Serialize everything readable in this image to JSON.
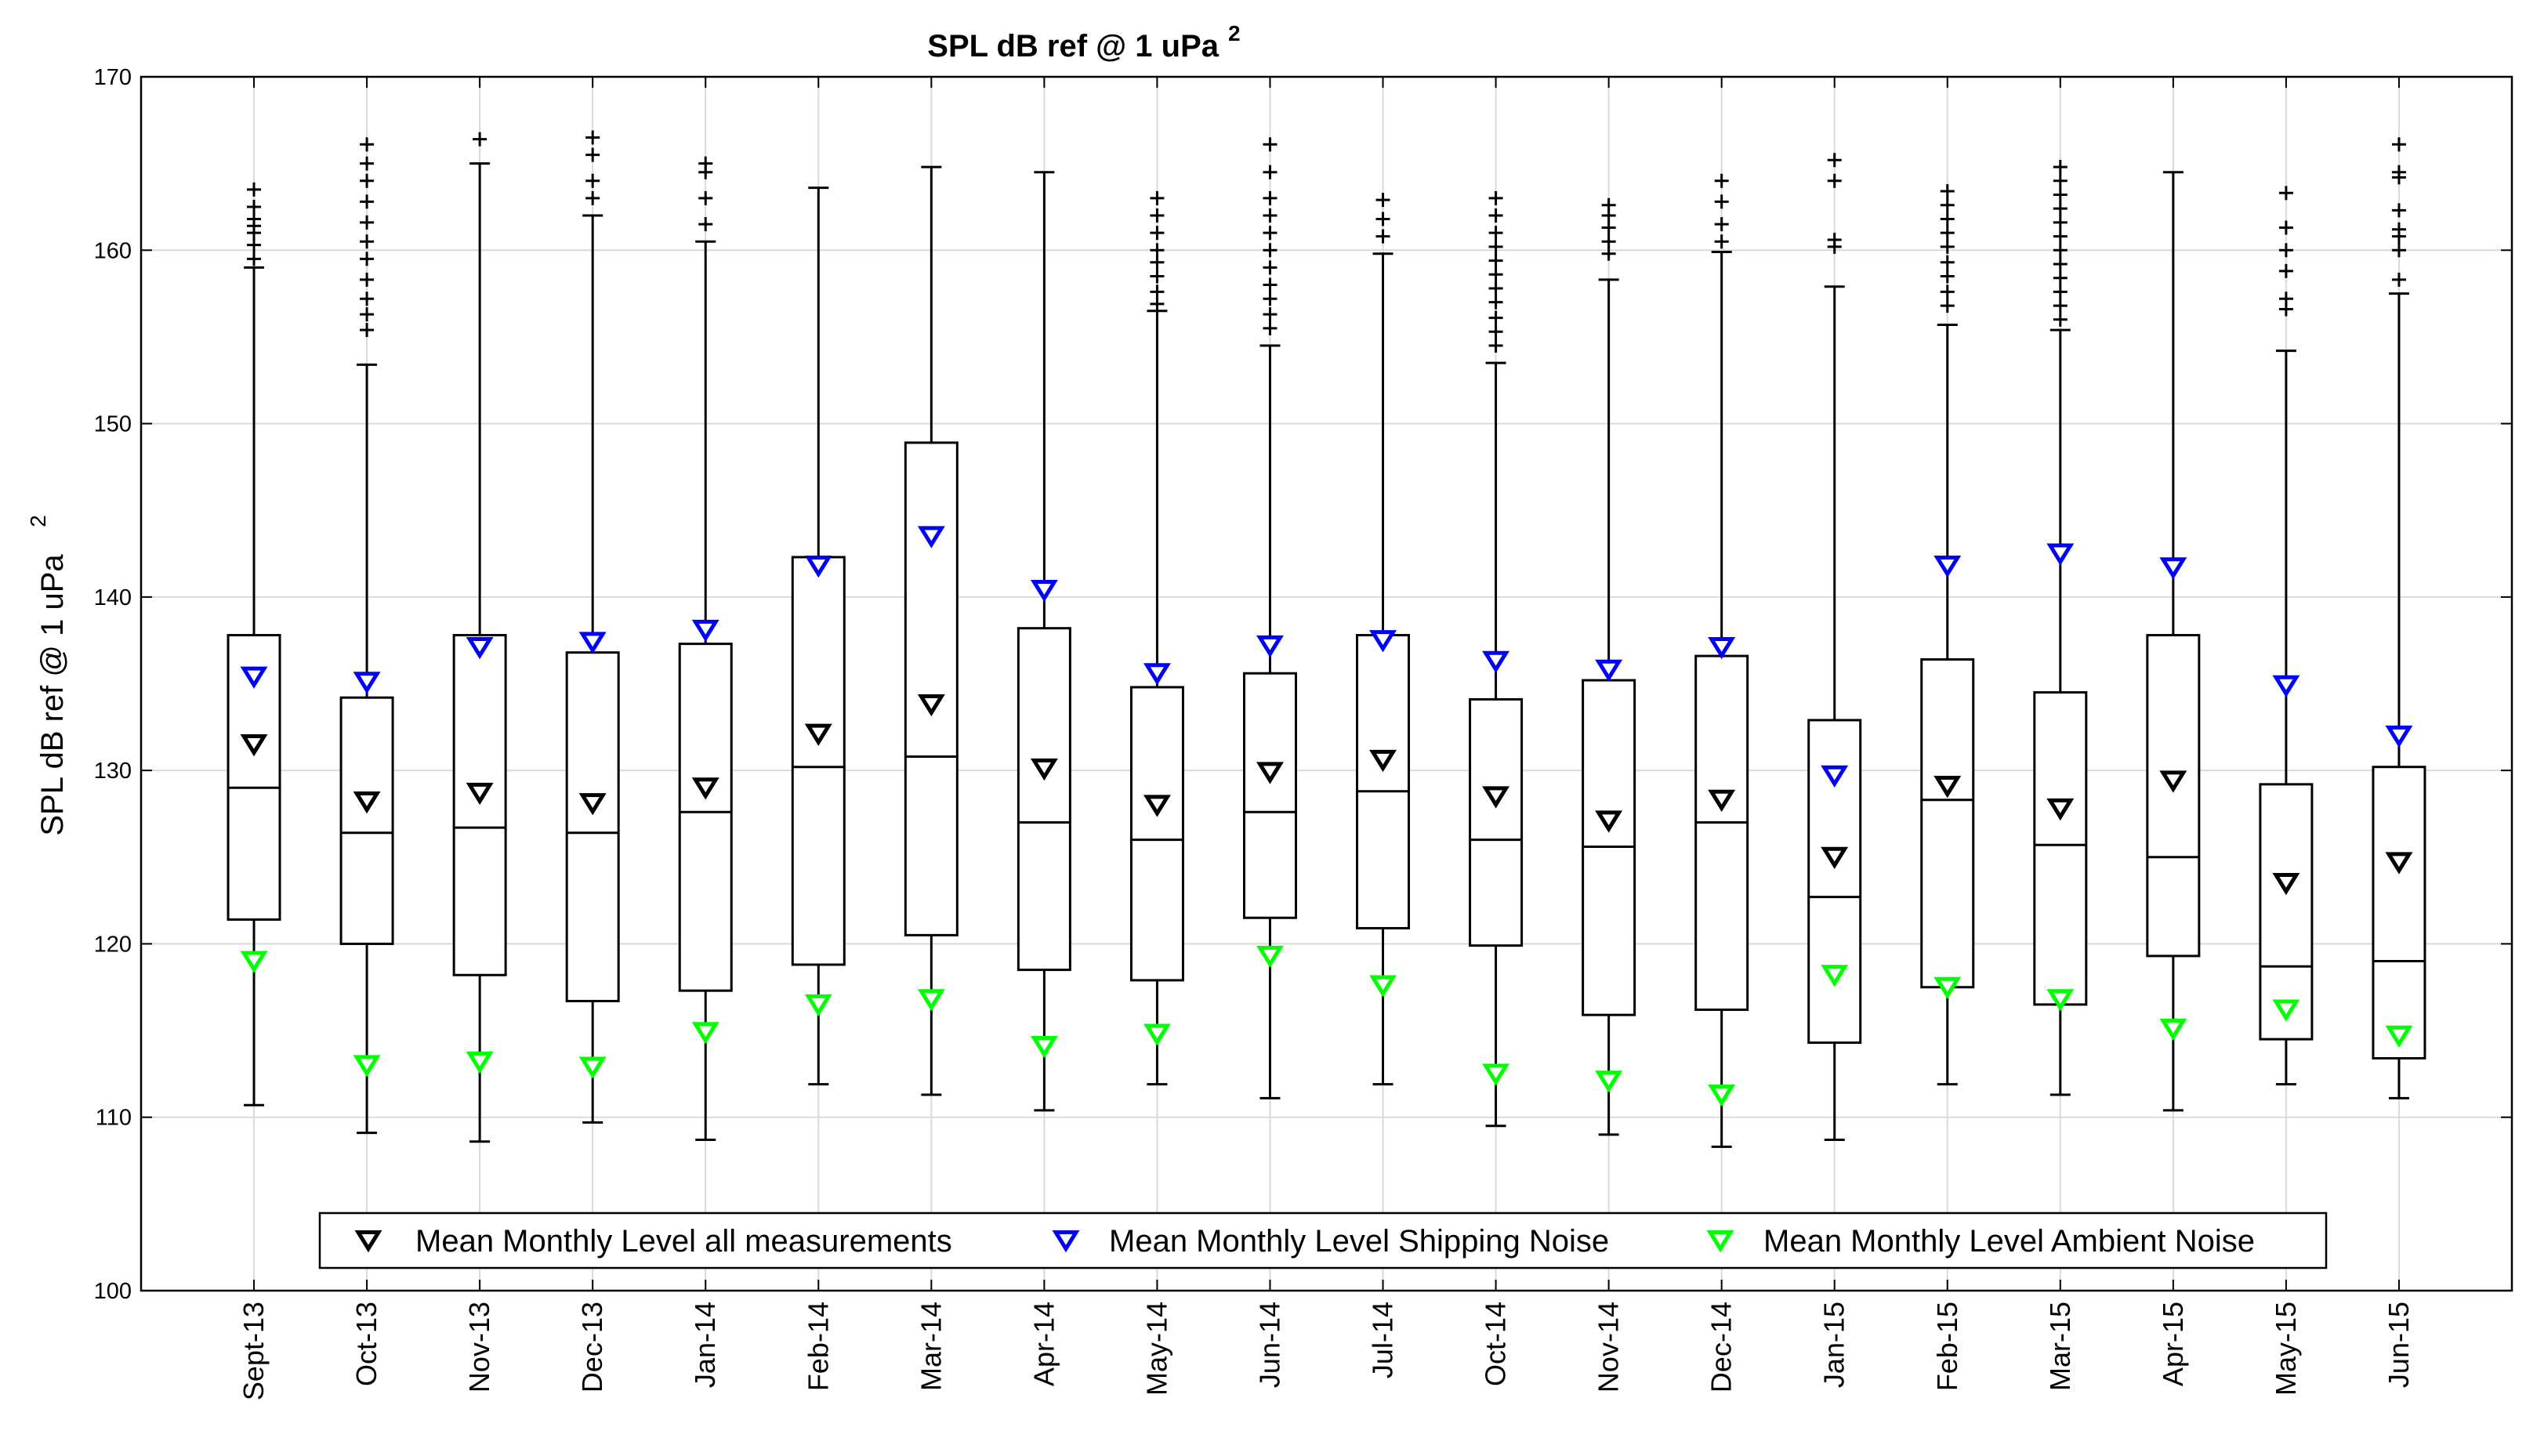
{
  "chart_data": {
    "type": "boxplot",
    "title": "SPL dB ref @ 1 uPa",
    "title_superscript": "2",
    "ylabel": "SPL dB ref @ 1 uPa",
    "ylabel_superscript": "2",
    "xlabel": "",
    "ylim": [
      100,
      170
    ],
    "yticks": [
      100,
      110,
      120,
      130,
      140,
      150,
      160,
      170
    ],
    "grid": true,
    "legend_position": "bottom-center",
    "colors": {
      "box": "#000000",
      "grid": "#d9d9d9",
      "mean_all": "#000000",
      "mean_shipping": "#0000ff",
      "mean_ambient": "#00ff00"
    },
    "categories": [
      "Sept-13",
      "Oct-13",
      "Nov-13",
      "Dec-13",
      "Jan-14",
      "Feb-14",
      "Mar-14",
      "Apr-14",
      "May-14",
      "Jun-14",
      "Jul-14",
      "Oct-14",
      "Nov-14",
      "Dec-14",
      "Jan-15",
      "Feb-15",
      "Mar-15",
      "Apr-15",
      "May-15",
      "Jun-15"
    ],
    "boxes": [
      {
        "whisker_low": 110.7,
        "q1": 121.4,
        "median": 129.0,
        "q3": 137.8,
        "whisker_high": 159.0,
        "outliers": [
          159.5,
          160.3,
          161.0,
          161.4,
          161.8,
          162.5,
          163.5
        ]
      },
      {
        "whisker_low": 109.1,
        "q1": 120.0,
        "median": 126.4,
        "q3": 134.2,
        "whisker_high": 153.4,
        "outliers": [
          155.4,
          156.3,
          157.2,
          158.3,
          159.5,
          160.5,
          161.6,
          162.8,
          164.0,
          165.0,
          166.1
        ]
      },
      {
        "whisker_low": 108.6,
        "q1": 118.2,
        "median": 126.7,
        "q3": 137.8,
        "whisker_high": 165.0,
        "outliers": [
          166.4
        ]
      },
      {
        "whisker_low": 109.7,
        "q1": 116.7,
        "median": 126.4,
        "q3": 136.8,
        "whisker_high": 162.0,
        "outliers": [
          163.0,
          164.0,
          165.5,
          166.5
        ]
      },
      {
        "whisker_low": 108.7,
        "q1": 117.3,
        "median": 127.6,
        "q3": 137.3,
        "whisker_high": 160.5,
        "outliers": [
          161.5,
          163.0,
          164.5,
          165.0
        ]
      },
      {
        "whisker_low": 111.9,
        "q1": 118.8,
        "median": 130.2,
        "q3": 142.3,
        "whisker_high": 163.6,
        "outliers": []
      },
      {
        "whisker_low": 111.3,
        "q1": 120.5,
        "median": 130.8,
        "q3": 148.9,
        "whisker_high": 164.8,
        "outliers": []
      },
      {
        "whisker_low": 110.4,
        "q1": 118.5,
        "median": 127.0,
        "q3": 138.2,
        "whisker_high": 164.5,
        "outliers": []
      },
      {
        "whisker_low": 111.9,
        "q1": 117.9,
        "median": 126.0,
        "q3": 134.8,
        "whisker_high": 156.5,
        "outliers": [
          156.9,
          157.6,
          158.5,
          159.3,
          160.0,
          161.0,
          162.0,
          163.0
        ]
      },
      {
        "whisker_low": 111.1,
        "q1": 121.5,
        "median": 127.6,
        "q3": 135.6,
        "whisker_high": 154.5,
        "outliers": [
          155.5,
          156.3,
          157.2,
          158.0,
          159.0,
          160.0,
          161.0,
          162.0,
          163.0,
          164.5,
          166.1
        ]
      },
      {
        "whisker_low": 111.9,
        "q1": 120.9,
        "median": 128.8,
        "q3": 137.8,
        "whisker_high": 159.8,
        "outliers": [
          160.8,
          161.8,
          162.9
        ]
      },
      {
        "whisker_low": 109.5,
        "q1": 119.9,
        "median": 126.0,
        "q3": 134.1,
        "whisker_high": 153.5,
        "outliers": [
          154.5,
          155.3,
          156.1,
          157.0,
          157.8,
          158.6,
          159.4,
          160.2,
          161.0,
          162.0,
          163.0
        ]
      },
      {
        "whisker_low": 109.0,
        "q1": 115.9,
        "median": 125.6,
        "q3": 135.2,
        "whisker_high": 158.3,
        "outliers": [
          159.8,
          160.5,
          161.3,
          162.0,
          162.6
        ]
      },
      {
        "whisker_low": 108.3,
        "q1": 116.2,
        "median": 127.0,
        "q3": 136.6,
        "whisker_high": 159.9,
        "outliers": [
          160.5,
          161.5,
          162.8,
          164.0
        ]
      },
      {
        "whisker_low": 108.7,
        "q1": 114.3,
        "median": 122.7,
        "q3": 132.9,
        "whisker_high": 157.9,
        "outliers": [
          160.2,
          160.6,
          164.0,
          165.2
        ]
      },
      {
        "whisker_low": 111.9,
        "q1": 117.5,
        "median": 128.3,
        "q3": 136.4,
        "whisker_high": 155.7,
        "outliers": [
          156.8,
          157.6,
          158.5,
          159.3,
          160.2,
          161.0,
          161.8,
          162.6,
          163.4
        ]
      },
      {
        "whisker_low": 111.3,
        "q1": 116.5,
        "median": 125.7,
        "q3": 134.5,
        "whisker_high": 155.4,
        "outliers": [
          156.0,
          156.8,
          157.6,
          158.4,
          159.2,
          160.0,
          160.8,
          161.6,
          162.4,
          163.2,
          164.0,
          164.8
        ]
      },
      {
        "whisker_low": 110.4,
        "q1": 119.3,
        "median": 125.0,
        "q3": 137.8,
        "whisker_high": 164.5,
        "outliers": []
      },
      {
        "whisker_low": 111.9,
        "q1": 114.5,
        "median": 118.7,
        "q3": 129.2,
        "whisker_high": 154.2,
        "outliers": [
          156.6,
          157.2,
          158.8,
          160.0,
          161.3,
          163.3
        ]
      },
      {
        "whisker_low": 111.1,
        "q1": 113.4,
        "median": 119.0,
        "q3": 130.2,
        "whisker_high": 157.5,
        "outliers": [
          158.3,
          160.0,
          160.8,
          161.2,
          162.3,
          164.2,
          164.5,
          166.1
        ]
      }
    ],
    "series": [
      {
        "name": "Mean Monthly Level all measurements",
        "color": "#000000",
        "marker": "triangle-down",
        "values": [
          131.5,
          128.2,
          128.7,
          128.1,
          129.0,
          132.1,
          133.8,
          130.1,
          128.0,
          129.9,
          130.6,
          128.5,
          127.1,
          128.3,
          125.0,
          129.1,
          127.8,
          129.4,
          123.5,
          124.7
        ]
      },
      {
        "name": "Mean Monthly Level Shipping Noise",
        "color": "#0000ff",
        "marker": "triangle-down",
        "values": [
          135.4,
          135.1,
          137.1,
          137.4,
          138.1,
          141.8,
          143.5,
          140.4,
          135.6,
          137.2,
          137.5,
          136.3,
          135.8,
          137.1,
          129.7,
          141.8,
          142.5,
          141.7,
          134.9,
          132.0
        ]
      },
      {
        "name": "Mean Monthly Level Ambient Noise",
        "color": "#00ff00",
        "marker": "triangle-down",
        "values": [
          119.0,
          113.0,
          113.2,
          112.9,
          114.9,
          116.5,
          116.8,
          114.1,
          114.8,
          119.3,
          117.6,
          112.5,
          112.1,
          111.3,
          118.2,
          117.5,
          116.8,
          115.1,
          116.2,
          114.7
        ]
      }
    ]
  }
}
